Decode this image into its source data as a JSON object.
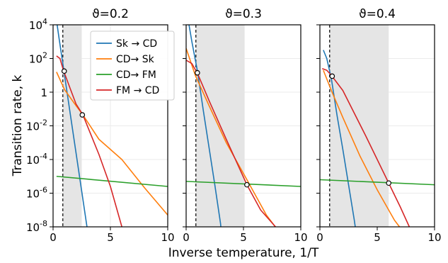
{
  "chart_data": {
    "type": "line",
    "shared_xlabel": "Inverse temperature, 1/T",
    "shared_ylabel": "Transition rate, k",
    "legend": {
      "placement": "top-right of first panel",
      "entries": [
        {
          "label": "Sk → CD",
          "color": "#1f77b4"
        },
        {
          "label": "CD→ Sk",
          "color": "#ff7f0e"
        },
        {
          "label": "CD→ FM",
          "color": "#2ca02c"
        },
        {
          "label": "FM → CD",
          "color": "#d62728"
        }
      ]
    },
    "colors": {
      "sk_cd": "#1f77b4",
      "cd_sk": "#ff7f0e",
      "cd_fm": "#2ca02c",
      "fm_cd": "#d62728",
      "shade": "#e5e5e5",
      "grid": "#ebebeb"
    },
    "x_ticks": [
      0,
      5,
      10
    ],
    "y_ticks": [
      {
        "exp": 4,
        "label": "10"
      },
      {
        "exp": 2,
        "label": "10"
      },
      {
        "exp": 0,
        "label": "1"
      },
      {
        "exp": -2,
        "label": "10"
      },
      {
        "exp": -4,
        "label": "10"
      },
      {
        "exp": -6,
        "label": "10"
      },
      {
        "exp": -8,
        "label": "10"
      }
    ],
    "y_tick_exponents": [
      "4",
      "2",
      "",
      "-2",
      "-4",
      "-6",
      "-8"
    ],
    "xlim": [
      0,
      10
    ],
    "ylim_log10": [
      -8,
      4
    ],
    "log_y": true,
    "grid": true,
    "panels": [
      {
        "title": "ϑ=0.2",
        "dashed_x": 0.85,
        "shaded_x": [
          0.85,
          2.5
        ],
        "series": [
          {
            "key": "sk_cd",
            "x": [
              0.0,
              0.5,
              1.0,
              1.5,
              2.0,
              2.5,
              3.0,
              3.4
            ],
            "y_log10": [
              5.7,
              3.3,
              1.0,
              -1.3,
              -3.6,
              -5.9,
              -8.2,
              -10.0
            ]
          },
          {
            "key": "cd_sk",
            "x": [
              0.3,
              1.0,
              2.0,
              2.6,
              4.0,
              6.0,
              8.0,
              10.0
            ],
            "y_log10": [
              1.2,
              0.15,
              -0.8,
              -1.35,
              -2.8,
              -4.0,
              -5.7,
              -7.3
            ]
          },
          {
            "key": "cd_fm",
            "x": [
              0.3,
              10.0
            ],
            "y_log10": [
              -5.0,
              -5.6
            ]
          },
          {
            "key": "fm_cd",
            "x": [
              0.3,
              0.6,
              0.9,
              1.5,
              2.0,
              2.6,
              4.0,
              5.0,
              6.0
            ],
            "y_log10": [
              2.15,
              2.0,
              1.3,
              0.2,
              -0.7,
              -1.35,
              -3.7,
              -5.6,
              -8.0
            ]
          }
        ],
        "markers": [
          {
            "x": 0.97,
            "y_log10": 1.25
          },
          {
            "x": 2.55,
            "y_log10": -1.35
          }
        ]
      },
      {
        "title": "ϑ=0.3",
        "dashed_x": 0.85,
        "shaded_x": [
          0.85,
          5.1
        ],
        "series": [
          {
            "key": "sk_cd",
            "x": [
              0.0,
              0.5,
              1.0,
              1.5,
              2.0,
              2.5,
              3.0,
              3.3
            ],
            "y_log10": [
              5.0,
              3.0,
              1.2,
              -1.1,
              -3.3,
              -5.5,
              -7.8,
              -10.0
            ]
          },
          {
            "key": "cd_sk",
            "x": [
              0.0,
              0.8,
              2.0,
              3.5,
              5.3,
              7.0,
              8.0
            ],
            "y_log10": [
              2.6,
              1.0,
              -0.8,
              -3.0,
              -5.2,
              -7.3,
              -8.2
            ]
          },
          {
            "key": "cd_fm",
            "x": [
              0.0,
              10.0
            ],
            "y_log10": [
              -5.3,
              -5.6
            ]
          },
          {
            "key": "fm_cd",
            "x": [
              0.0,
              0.5,
              1.0,
              2.0,
              3.5,
              5.3,
              6.5,
              7.8
            ],
            "y_log10": [
              1.9,
              1.7,
              1.1,
              -0.5,
              -2.8,
              -5.5,
              -7.0,
              -8.0
            ]
          }
        ],
        "markers": [
          {
            "x": 0.98,
            "y_log10": 1.15
          },
          {
            "x": 5.3,
            "y_log10": -5.5
          }
        ]
      },
      {
        "title": "ϑ=0.4",
        "dashed_x": 0.85,
        "shaded_x": [
          0.85,
          6.0
        ],
        "series": [
          {
            "key": "sk_cd",
            "x": [
              0.3,
              0.6,
              1.0,
              1.5,
              2.0,
              2.5,
              3.0,
              3.5
            ],
            "y_log10": [
              2.5,
              2.0,
              0.8,
              -1.4,
              -3.4,
              -5.5,
              -7.6,
              -10.0
            ]
          },
          {
            "key": "cd_sk",
            "x": [
              0.3,
              1.0,
              2.0,
              3.5,
              5.0,
              6.5,
              7.5
            ],
            "y_log10": [
              1.3,
              0.1,
              -1.5,
              -3.8,
              -5.8,
              -7.6,
              -8.5
            ]
          },
          {
            "key": "cd_fm",
            "x": [
              0.0,
              10.0
            ],
            "y_log10": [
              -5.2,
              -5.5
            ]
          },
          {
            "key": "fm_cd",
            "x": [
              0.2,
              0.6,
              1.0,
              2.0,
              4.0,
              6.0,
              7.0,
              7.8
            ],
            "y_log10": [
              1.4,
              1.3,
              1.0,
              0.1,
              -2.6,
              -5.4,
              -6.8,
              -8.0
            ]
          }
        ],
        "markers": [
          {
            "x": 1.07,
            "y_log10": 0.95
          },
          {
            "x": 6.0,
            "y_log10": -5.4
          }
        ]
      }
    ]
  }
}
